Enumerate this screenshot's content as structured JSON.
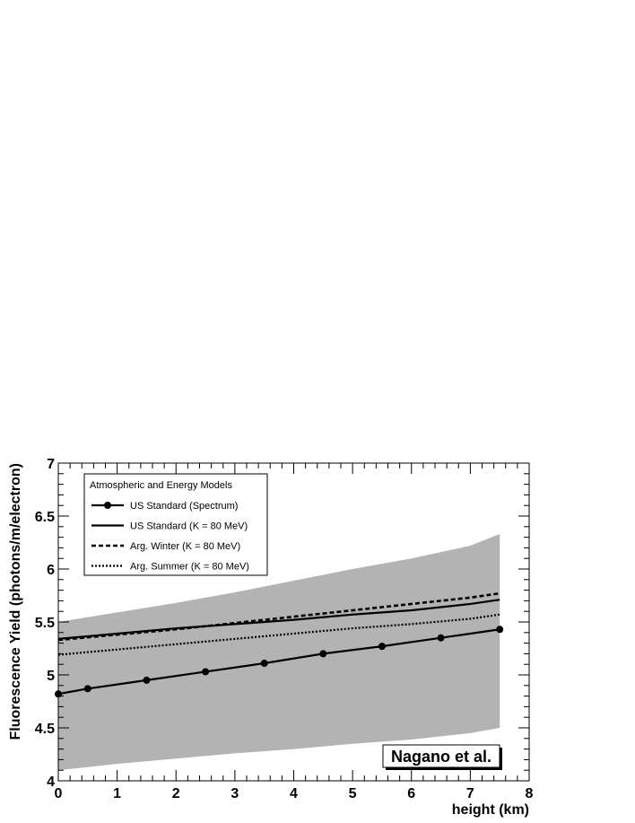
{
  "chart_data": {
    "type": "line",
    "xlabel": "height (km)",
    "ylabel": "Fluorescence Yield (photons/m/electron)",
    "xlim": [
      0,
      8
    ],
    "ylim": [
      4,
      7
    ],
    "x_ticks": [
      "0",
      "1",
      "2",
      "3",
      "4",
      "5",
      "6",
      "7",
      "8"
    ],
    "y_ticks": [
      "4",
      "4.5",
      "5",
      "5.5",
      "6",
      "6.5",
      "7"
    ],
    "grid": false,
    "legend": {
      "title": "Atmospheric and Energy Models",
      "placement": "top-left"
    },
    "band": {
      "color": "#b3b3b3",
      "x": [
        0,
        1,
        2,
        3,
        4,
        5,
        6,
        7,
        7.5
      ],
      "upper": [
        5.5,
        5.59,
        5.68,
        5.78,
        5.89,
        6.0,
        6.1,
        6.22,
        6.33
      ],
      "lower": [
        4.1,
        4.16,
        4.21,
        4.26,
        4.3,
        4.35,
        4.39,
        4.45,
        4.5
      ]
    },
    "series": [
      {
        "name": "US Standard (Spectrum)",
        "style": "solid-markers",
        "x": [
          0,
          0.5,
          1.5,
          2.5,
          3.5,
          4.5,
          5.5,
          6.5,
          7.5
        ],
        "y": [
          4.82,
          4.87,
          4.95,
          5.03,
          5.11,
          5.2,
          5.27,
          5.35,
          5.43
        ]
      },
      {
        "name": "US Standard (K = 80 MeV)",
        "style": "solid",
        "x": [
          0,
          1,
          2,
          3,
          4,
          5,
          6,
          7,
          7.5
        ],
        "y": [
          5.34,
          5.39,
          5.44,
          5.48,
          5.52,
          5.57,
          5.61,
          5.67,
          5.71
        ]
      },
      {
        "name": "Arg. Winter (K = 80 MeV)",
        "style": "dashed",
        "x": [
          0,
          1,
          2,
          3,
          4,
          5,
          6,
          7,
          7.5
        ],
        "y": [
          5.33,
          5.38,
          5.43,
          5.49,
          5.55,
          5.61,
          5.67,
          5.73,
          5.77
        ]
      },
      {
        "name": "Arg. Summer (K = 80 MeV)",
        "style": "dotted",
        "x": [
          0,
          1,
          2,
          3,
          4,
          5,
          6,
          7,
          7.5
        ],
        "y": [
          5.19,
          5.24,
          5.29,
          5.34,
          5.39,
          5.44,
          5.48,
          5.53,
          5.57
        ]
      }
    ],
    "annotation": "Nagano et al."
  }
}
